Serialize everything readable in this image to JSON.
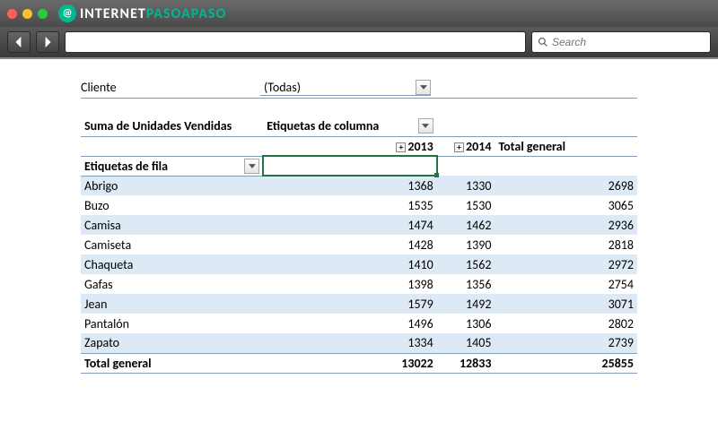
{
  "browser": {
    "logo_prefix": "INTERNET",
    "logo_suffix": "PASOAPASO",
    "search_placeholder": "Search"
  },
  "pivot": {
    "filter_field": "Cliente",
    "filter_value": "(Todas)",
    "data_field_label": "Suma de Unidades Vendidas",
    "column_labels_header": "Etiquetas de columna",
    "row_labels_header": "Etiquetas de fila",
    "grand_total_label": "Total general",
    "years": [
      "2013",
      "2014"
    ],
    "rows": [
      {
        "label": "Abrigo",
        "y2013": 1368,
        "y2014": 1330,
        "total": 2698
      },
      {
        "label": "Buzo",
        "y2013": 1535,
        "y2014": 1530,
        "total": 3065
      },
      {
        "label": "Camisa",
        "y2013": 1474,
        "y2014": 1462,
        "total": 2936
      },
      {
        "label": "Camiseta",
        "y2013": 1428,
        "y2014": 1390,
        "total": 2818
      },
      {
        "label": "Chaqueta",
        "y2013": 1410,
        "y2014": 1562,
        "total": 2972
      },
      {
        "label": "Gafas",
        "y2013": 1398,
        "y2014": 1356,
        "total": 2754
      },
      {
        "label": "Jean",
        "y2013": 1579,
        "y2014": 1492,
        "total": 3071
      },
      {
        "label": "Pantalón",
        "y2013": 1496,
        "y2014": 1306,
        "total": 2802
      },
      {
        "label": "Zapato",
        "y2013": 1334,
        "y2014": 1405,
        "total": 2739
      }
    ],
    "totals": {
      "y2013": 13022,
      "y2014": 12833,
      "grand": 25855
    },
    "styling": {
      "band_color": "#dde9f5",
      "border_color": "#7f9db9",
      "selection_color": "#217346",
      "font_family": "Calibri",
      "font_size_pt": 11
    }
  }
}
